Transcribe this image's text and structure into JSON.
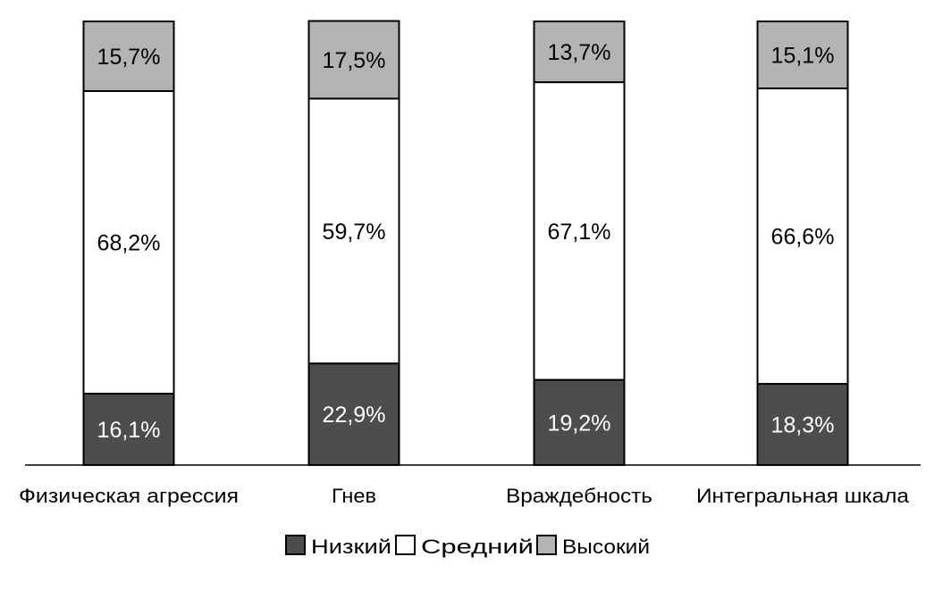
{
  "chart_data": {
    "type": "bar",
    "stacked": true,
    "categories": [
      "Физическая агрессия",
      "Гнев",
      "Враждебность",
      "Интегральная шкала"
    ],
    "series": [
      {
        "name": "Низкий",
        "values": [
          16.1,
          22.9,
          19.2,
          18.3
        ],
        "labels": [
          "16,1%",
          "22,9%",
          "19,2%",
          "18,3%"
        ],
        "color": "#4d4d4d",
        "text_color": "#ffffff"
      },
      {
        "name": "Средний",
        "values": [
          68.2,
          59.7,
          67.1,
          66.6
        ],
        "labels": [
          "68,2%",
          "59,7%",
          "67,1%",
          "66,6%"
        ],
        "color": "#ffffff",
        "text_color": "#000000"
      },
      {
        "name": "Высокий",
        "values": [
          15.7,
          17.5,
          13.7,
          15.1
        ],
        "labels": [
          "15,7%",
          "17,5%",
          "13,7%",
          "15,1%"
        ],
        "color": "#b3b3b3",
        "text_color": "#000000"
      }
    ],
    "ylim": [
      0,
      100
    ],
    "grid": false,
    "legend": "bottom",
    "title": "",
    "xlabel": "",
    "ylabel": ""
  }
}
